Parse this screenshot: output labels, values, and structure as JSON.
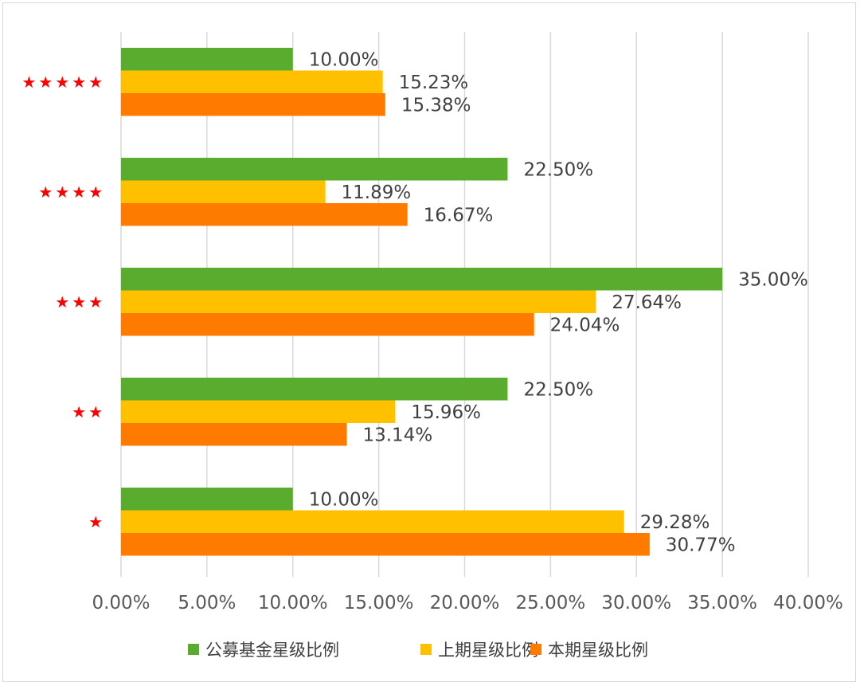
{
  "chart_data": {
    "type": "bar",
    "orientation": "horizontal",
    "categories": [
      "★★★★★",
      "★★★★",
      "★★★",
      "★★",
      "★"
    ],
    "series": [
      {
        "name": "公募基金星级比例",
        "color": "#59ac2d",
        "values": [
          10.0,
          22.5,
          35.0,
          22.5,
          10.0
        ],
        "labels": [
          "10.00%",
          "22.50%",
          "35.00%",
          "22.50%",
          "10.00%"
        ]
      },
      {
        "name": "上期星级比例",
        "color": "#ffc000",
        "values": [
          15.23,
          11.89,
          27.64,
          15.96,
          29.28
        ],
        "labels": [
          "15.23%",
          "11.89%",
          "27.64%",
          "15.96%",
          "29.28%"
        ]
      },
      {
        "name": "本期星级比例",
        "color": "#ff7b00",
        "values": [
          15.38,
          16.67,
          24.04,
          13.14,
          30.77
        ],
        "labels": [
          "15.38%",
          "16.67%",
          "24.04%",
          "13.14%",
          "30.77%"
        ]
      }
    ],
    "xlim": [
      0,
      40
    ],
    "x_ticks": [
      0,
      5,
      10,
      15,
      20,
      25,
      30,
      35,
      40
    ],
    "x_tick_labels": [
      "0.00%",
      "5.00%",
      "10.00%",
      "15.00%",
      "20.00%",
      "25.00%",
      "30.00%",
      "35.00%",
      "40.00%"
    ],
    "grid": true,
    "legend_position": "bottom",
    "category_label_color": "#ff0000",
    "title": "",
    "xlabel": "",
    "ylabel": ""
  }
}
